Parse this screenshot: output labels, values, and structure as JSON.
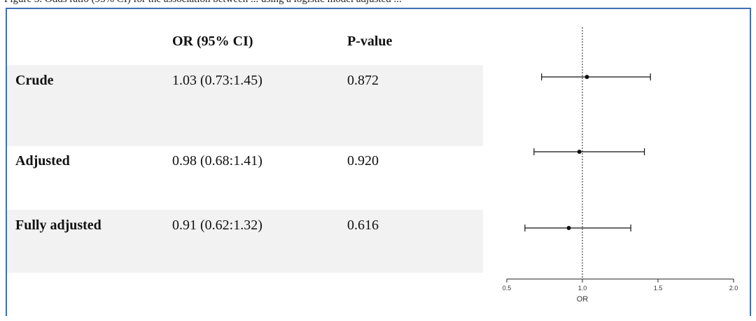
{
  "caption": "Figure 3. Odds ratio (95% CI) for the association between ... using a logistic model adjusted ...",
  "table": {
    "headers": [
      "",
      "OR (95% CI)",
      "P-value"
    ],
    "rows": [
      {
        "label": "Crude",
        "or_ci": "1.03 (0.73:1.45)",
        "p": "0.872"
      },
      {
        "label": "Adjusted",
        "or_ci": "0.98 (0.68:1.41)",
        "p": "0.920"
      },
      {
        "label": "Fully adjusted",
        "or_ci": "0.91 (0.62:1.32)",
        "p": "0.616"
      }
    ]
  },
  "chart_data": {
    "type": "scatter",
    "subtype": "forest",
    "categories": [
      "Crude",
      "Adjusted",
      "Fully adjusted"
    ],
    "series": [
      {
        "estimate": [
          1.03,
          0.98,
          0.91
        ],
        "lower": [
          0.73,
          0.68,
          0.62
        ],
        "upper": [
          1.45,
          1.41,
          1.32
        ]
      }
    ],
    "xlabel": "OR",
    "xlim": [
      0.5,
      2.0
    ],
    "xticks": [
      "0.5",
      "1.0",
      "1.5",
      "2.0"
    ],
    "reference_line": 1.0,
    "grid": false
  }
}
